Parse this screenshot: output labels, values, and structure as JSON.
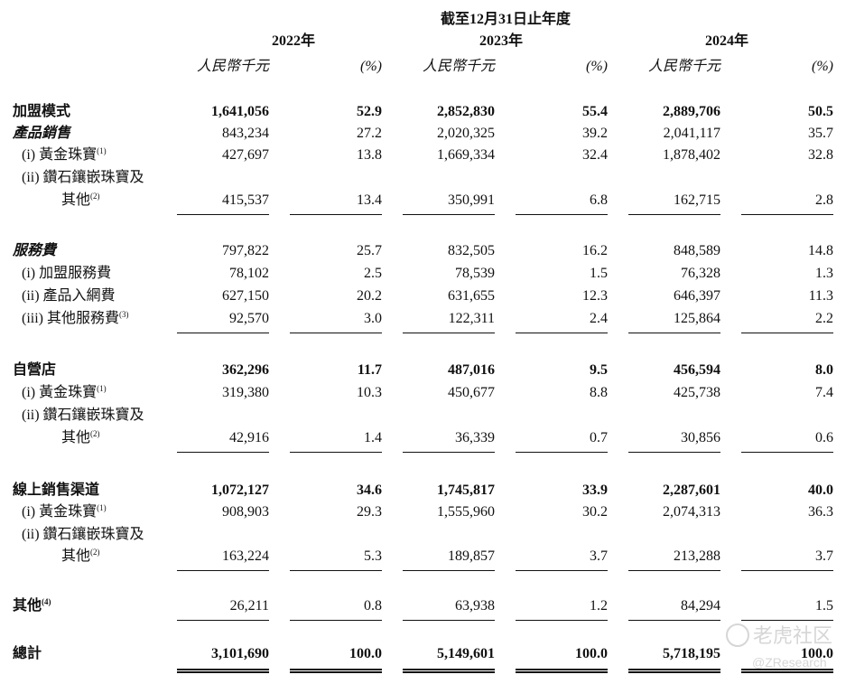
{
  "header": {
    "period": "截至12月31日止年度",
    "years": [
      "2022年",
      "2023年",
      "2024年"
    ],
    "unit": "人民幣千元",
    "pct": "(%)"
  },
  "rows": {
    "franchise": {
      "label": "加盟模式",
      "v": [
        "1,641,056",
        "52.9",
        "2,852,830",
        "55.4",
        "2,889,706",
        "50.5"
      ]
    },
    "product_sales": {
      "label": "產品銷售",
      "v": [
        "843,234",
        "27.2",
        "2,020,325",
        "39.2",
        "2,041,117",
        "35.7"
      ]
    },
    "ps_gold": {
      "label": "(i) 黃金珠寶",
      "note": "(1)",
      "v": [
        "427,697",
        "13.8",
        "1,669,334",
        "32.4",
        "1,878,402",
        "32.8"
      ]
    },
    "ps_diamond": {
      "label1": "(ii) 鑽石鑲嵌珠寶及",
      "label2": "其他",
      "note": "(2)",
      "v": [
        "415,537",
        "13.4",
        "350,991",
        "6.8",
        "162,715",
        "2.8"
      ]
    },
    "service": {
      "label": "服務費",
      "v": [
        "797,822",
        "25.7",
        "832,505",
        "16.2",
        "848,589",
        "14.8"
      ]
    },
    "svc_franchise": {
      "label": "(i) 加盟服務費",
      "v": [
        "78,102",
        "2.5",
        "78,539",
        "1.5",
        "76,328",
        "1.3"
      ]
    },
    "svc_product": {
      "label": "(ii) 產品入網費",
      "v": [
        "627,150",
        "20.2",
        "631,655",
        "12.3",
        "646,397",
        "11.3"
      ]
    },
    "svc_other": {
      "label": "(iii) 其他服務費",
      "note": "(3)",
      "v": [
        "92,570",
        "3.0",
        "122,311",
        "2.4",
        "125,864",
        "2.2"
      ]
    },
    "self_store": {
      "label": "自營店",
      "v": [
        "362,296",
        "11.7",
        "487,016",
        "9.5",
        "456,594",
        "8.0"
      ]
    },
    "ss_gold": {
      "label": "(i) 黃金珠寶",
      "note": "(1)",
      "v": [
        "319,380",
        "10.3",
        "450,677",
        "8.8",
        "425,738",
        "7.4"
      ]
    },
    "ss_diamond": {
      "label1": "(ii) 鑽石鑲嵌珠寶及",
      "label2": "其他",
      "note": "(2)",
      "v": [
        "42,916",
        "1.4",
        "36,339",
        "0.7",
        "30,856",
        "0.6"
      ]
    },
    "online": {
      "label": "線上銷售渠道",
      "v": [
        "1,072,127",
        "34.6",
        "1,745,817",
        "33.9",
        "2,287,601",
        "40.0"
      ]
    },
    "on_gold": {
      "label": "(i) 黃金珠寶",
      "note": "(1)",
      "v": [
        "908,903",
        "29.3",
        "1,555,960",
        "30.2",
        "2,074,313",
        "36.3"
      ]
    },
    "on_diamond": {
      "label1": "(ii) 鑽石鑲嵌珠寶及",
      "label2": "其他",
      "note": "(2)",
      "v": [
        "163,224",
        "5.3",
        "189,857",
        "3.7",
        "213,288",
        "3.7"
      ]
    },
    "others": {
      "label": "其他",
      "note": "(4)",
      "v": [
        "26,211",
        "0.8",
        "63,938",
        "1.2",
        "84,294",
        "1.5"
      ]
    },
    "total": {
      "label": "總計",
      "v": [
        "3,101,690",
        "100.0",
        "5,149,601",
        "100.0",
        "5,718,195",
        "100.0"
      ]
    }
  },
  "watermark": {
    "brand": "老虎社区",
    "handle": "@ZResearch"
  }
}
